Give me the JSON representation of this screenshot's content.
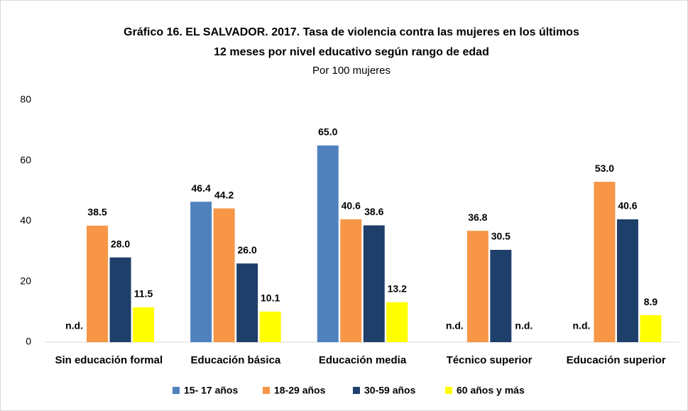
{
  "chart_data": {
    "type": "bar",
    "title": [
      "Gráfico 16. EL SALVADOR. 2017. Tasa de violencia contra las mujeres en los últimos",
      "12 meses por nivel educativo según rango de edad"
    ],
    "subtitle": "Por 100 mujeres",
    "categories": [
      "Sin educación formal",
      "Educación básica",
      "Educación media",
      "Técnico superior",
      "Educación superior"
    ],
    "series": [
      {
        "name": "15- 17 años",
        "color": "#4f81bd",
        "values": [
          null,
          46.4,
          65.0,
          null,
          null
        ],
        "value_labels": [
          "n.d.",
          "46.4",
          "65.0",
          "n.d.",
          "n.d."
        ]
      },
      {
        "name": "18-29 años",
        "color": "#f79646",
        "values": [
          38.5,
          44.2,
          40.6,
          36.8,
          53.0
        ],
        "value_labels": [
          "38.5",
          "44.2",
          "40.6",
          "36.8",
          "53.0"
        ]
      },
      {
        "name": "30-59 años",
        "color": "#1f3f6b",
        "values": [
          28.0,
          26.0,
          38.6,
          30.5,
          40.6
        ],
        "value_labels": [
          "28.0",
          "26.0",
          "38.6",
          "30.5",
          "40.6"
        ]
      },
      {
        "name": "60 años y más",
        "color": "#ffff00",
        "values": [
          11.5,
          10.1,
          13.2,
          null,
          8.9
        ],
        "value_labels": [
          "11.5",
          "10.1",
          "13.2",
          "n.d.",
          "8.9"
        ]
      }
    ],
    "ylim": [
      0,
      80
    ],
    "yticks": [
      0,
      20,
      40,
      60,
      80
    ],
    "grid": false,
    "legend": "bottom"
  }
}
